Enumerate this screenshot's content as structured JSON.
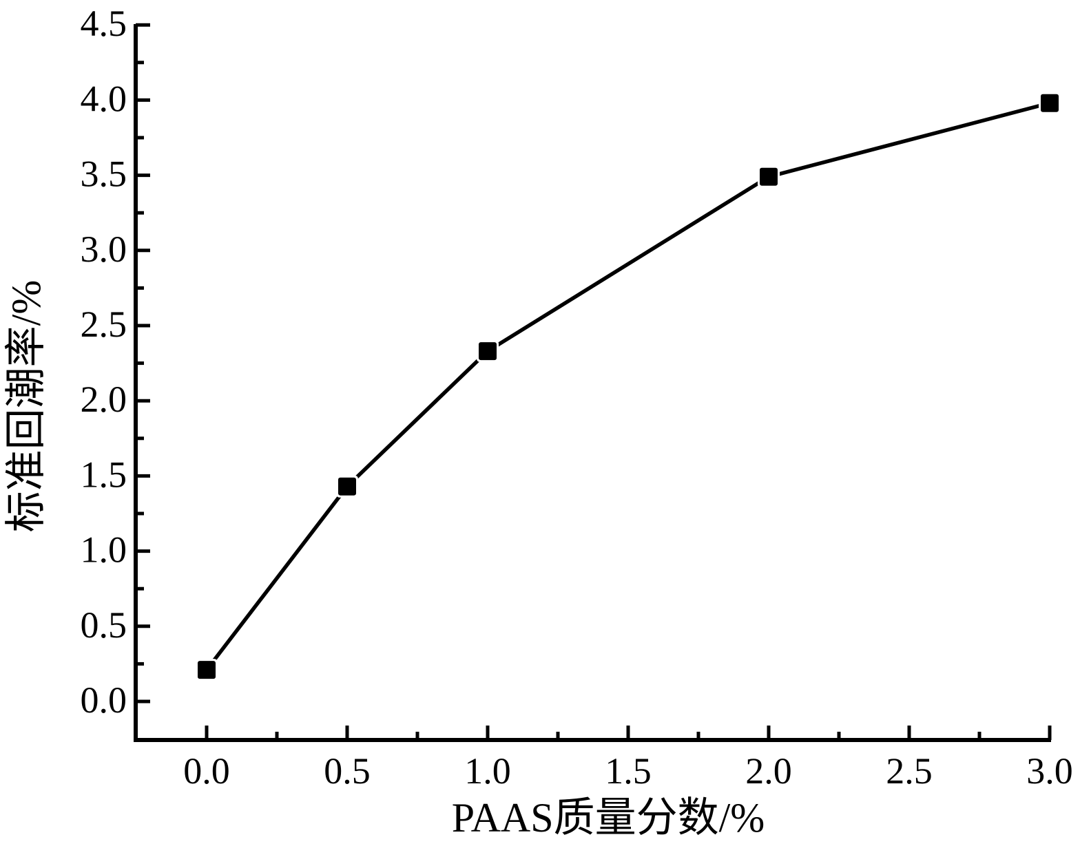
{
  "figure": {
    "background": "#ffffff"
  },
  "chart_data": {
    "type": "line",
    "title": "",
    "xlabel": "PAAS质量分数/%",
    "ylabel": "标准回潮率/%",
    "x": [
      0.0,
      0.5,
      1.0,
      2.0,
      3.0
    ],
    "y": [
      0.21,
      1.43,
      2.33,
      3.49,
      3.98
    ],
    "series": [
      {
        "name": "标准回潮率",
        "marker": "filled-square",
        "color": "#000000"
      }
    ],
    "xlim": [
      -0.25,
      3.0
    ],
    "ylim": [
      -0.26,
      4.5
    ],
    "x_major_ticks": [
      0.0,
      0.5,
      1.0,
      1.5,
      2.0,
      2.5,
      3.0
    ],
    "x_minor_ticks": [
      0.25,
      0.75,
      1.25,
      1.75,
      2.25,
      2.75
    ],
    "y_major_ticks": [
      0.0,
      0.5,
      1.0,
      1.5,
      2.0,
      2.5,
      3.0,
      3.5,
      4.0,
      4.5
    ],
    "y_minor_ticks": [
      0.25,
      0.75,
      1.25,
      1.75,
      2.25,
      2.75,
      3.25,
      3.75,
      4.25
    ],
    "tick_decimals": 1,
    "grid": false,
    "legend_position": "none",
    "line_color": "#000000",
    "marker_color": "#000000",
    "axis_color": "#000000"
  }
}
